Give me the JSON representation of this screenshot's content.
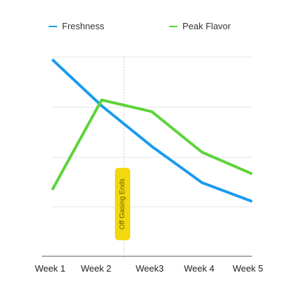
{
  "chart_data": {
    "type": "line",
    "categories": [
      "Week 1",
      "Week 2",
      "Week3",
      "Week 4",
      "Week 5"
    ],
    "series": [
      {
        "name": "Freshness",
        "color": "#1a9bf0",
        "values": [
          95,
          63,
          35,
          10,
          -3
        ]
      },
      {
        "name": "Peak Flavor",
        "color": "#5cd43a",
        "values": [
          5,
          67,
          59,
          31,
          16
        ]
      }
    ],
    "ylim": [
      0,
      100
    ],
    "grid": true,
    "legend": "top",
    "annotation": {
      "text": "Off Gasing Ends",
      "color": "#f2d80f",
      "position": "Week 2"
    }
  }
}
